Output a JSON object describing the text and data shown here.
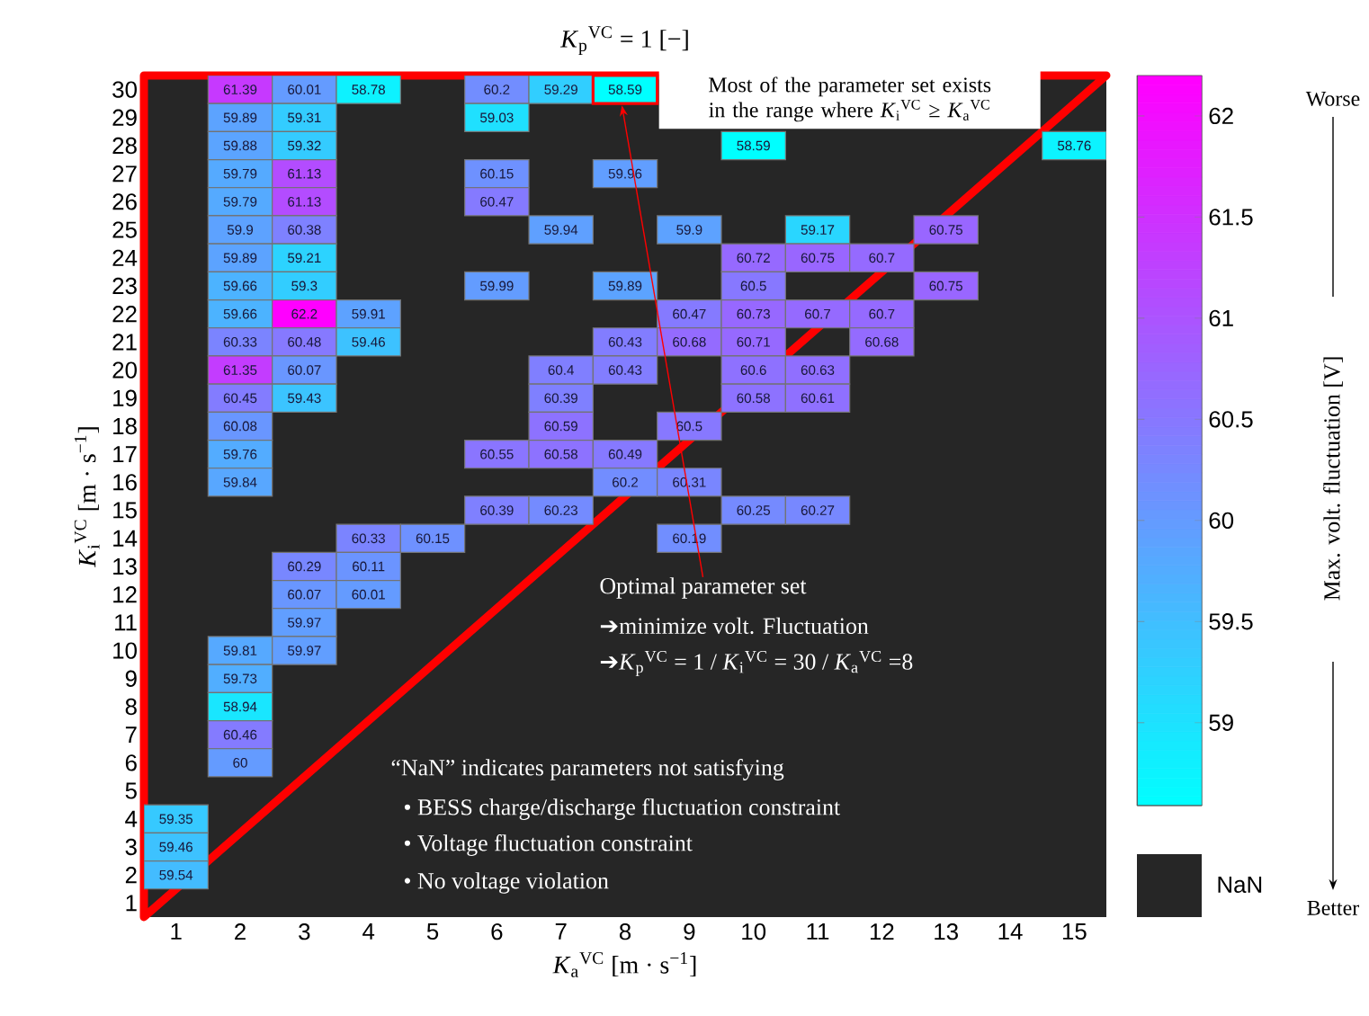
{
  "chart_data": {
    "type": "heatmap",
    "title": "*K*$_{p}$$^{VC}$ = 1 [−]",
    "xlabel": "*K*$_{a}$$^{VC}$ [m · s$^{−1}$]",
    "ylabel": "*K*$_{i}$$^{VC}$ [m · s$^{−1}$]",
    "clabel": "Max. volt. fluctuation [V]",
    "categories": [
      "1",
      "2",
      "3",
      "4",
      "5",
      "6",
      "7",
      "8",
      "9",
      "10",
      "11",
      "12",
      "13",
      "14",
      "15"
    ],
    "y_categories": [
      "30",
      "29",
      "28",
      "27",
      "26",
      "25",
      "24",
      "23",
      "22",
      "21",
      "20",
      "19",
      "18",
      "17",
      "16",
      "15",
      "14",
      "13",
      "12",
      "11",
      "10",
      "9",
      "8",
      "7",
      "6",
      "5",
      "4",
      "3",
      "2",
      "1"
    ],
    "cells": [
      [
        null,
        61.39,
        60.01,
        58.78,
        null,
        60.2,
        59.29,
        58.59,
        null,
        null,
        null,
        null,
        null,
        null,
        null
      ],
      [
        null,
        59.89,
        59.31,
        null,
        null,
        59.03,
        null,
        null,
        null,
        null,
        null,
        null,
        null,
        null,
        null
      ],
      [
        null,
        59.88,
        59.32,
        null,
        null,
        null,
        null,
        null,
        null,
        58.59,
        null,
        null,
        null,
        null,
        58.76
      ],
      [
        null,
        59.79,
        61.13,
        null,
        null,
        60.15,
        null,
        59.96,
        null,
        null,
        null,
        null,
        null,
        null,
        null
      ],
      [
        null,
        59.79,
        61.13,
        null,
        null,
        60.47,
        null,
        null,
        null,
        null,
        null,
        null,
        null,
        null,
        null
      ],
      [
        null,
        59.9,
        60.38,
        null,
        null,
        null,
        59.94,
        null,
        59.9,
        null,
        59.17,
        null,
        60.75,
        null,
        null
      ],
      [
        null,
        59.89,
        59.21,
        null,
        null,
        null,
        null,
        null,
        null,
        60.72,
        60.75,
        60.7,
        null,
        null,
        null
      ],
      [
        null,
        59.66,
        59.3,
        null,
        null,
        59.99,
        null,
        59.89,
        null,
        60.5,
        null,
        null,
        60.75,
        null,
        null
      ],
      [
        null,
        59.66,
        62.2,
        59.91,
        null,
        null,
        null,
        null,
        60.47,
        60.73,
        60.7,
        60.7,
        null,
        null,
        null
      ],
      [
        null,
        60.33,
        60.48,
        59.46,
        null,
        null,
        null,
        60.43,
        60.68,
        60.71,
        null,
        60.68,
        null,
        null,
        null
      ],
      [
        null,
        61.35,
        60.07,
        null,
        null,
        null,
        60.4,
        60.43,
        null,
        60.6,
        60.63,
        null,
        null,
        null,
        null
      ],
      [
        null,
        60.45,
        59.43,
        null,
        null,
        null,
        60.39,
        null,
        null,
        60.58,
        60.61,
        null,
        null,
        null,
        null
      ],
      [
        null,
        60.08,
        null,
        null,
        null,
        null,
        60.59,
        null,
        60.5,
        null,
        null,
        null,
        null,
        null,
        null
      ],
      [
        null,
        59.76,
        null,
        null,
        null,
        60.55,
        60.58,
        60.49,
        null,
        null,
        null,
        null,
        null,
        null,
        null
      ],
      [
        null,
        59.84,
        null,
        null,
        null,
        null,
        null,
        60.2,
        60.31,
        null,
        null,
        null,
        null,
        null,
        null
      ],
      [
        null,
        null,
        null,
        null,
        null,
        60.39,
        60.23,
        null,
        null,
        60.25,
        60.27,
        null,
        null,
        null,
        null
      ],
      [
        null,
        null,
        null,
        60.33,
        60.15,
        null,
        null,
        null,
        60.19,
        null,
        null,
        null,
        null,
        null,
        null
      ],
      [
        null,
        null,
        60.29,
        60.11,
        null,
        null,
        null,
        null,
        null,
        null,
        null,
        null,
        null,
        null,
        null
      ],
      [
        null,
        null,
        60.07,
        60.01,
        null,
        null,
        null,
        null,
        null,
        null,
        null,
        null,
        null,
        null,
        null
      ],
      [
        null,
        null,
        59.97,
        null,
        null,
        null,
        null,
        null,
        null,
        null,
        null,
        null,
        null,
        null,
        null
      ],
      [
        null,
        59.81,
        59.97,
        null,
        null,
        null,
        null,
        null,
        null,
        null,
        null,
        null,
        null,
        null,
        null
      ],
      [
        null,
        59.73,
        null,
        null,
        null,
        null,
        null,
        null,
        null,
        null,
        null,
        null,
        null,
        null,
        null
      ],
      [
        null,
        58.94,
        null,
        null,
        null,
        null,
        null,
        null,
        null,
        null,
        null,
        null,
        null,
        null,
        null
      ],
      [
        null,
        60.46,
        null,
        null,
        null,
        null,
        null,
        null,
        null,
        null,
        null,
        null,
        null,
        null,
        null
      ],
      [
        null,
        60,
        null,
        null,
        null,
        null,
        null,
        null,
        null,
        null,
        null,
        null,
        null,
        null,
        null
      ],
      [
        null,
        null,
        null,
        null,
        null,
        null,
        null,
        null,
        null,
        null,
        null,
        null,
        null,
        null,
        null
      ],
      [
        59.35,
        null,
        null,
        null,
        null,
        null,
        null,
        null,
        null,
        null,
        null,
        null,
        null,
        null,
        null
      ],
      [
        59.46,
        null,
        null,
        null,
        null,
        null,
        null,
        null,
        null,
        null,
        null,
        null,
        null,
        null,
        null
      ],
      [
        59.54,
        null,
        null,
        null,
        null,
        null,
        null,
        null,
        null,
        null,
        null,
        null,
        null,
        null,
        null
      ],
      [
        null,
        null,
        null,
        null,
        null,
        null,
        null,
        null,
        null,
        null,
        null,
        null,
        null,
        null,
        null
      ]
    ],
    "data_labels": true,
    "clim": [
      58.59,
      62.2
    ],
    "cticks": [
      59,
      59.5,
      60,
      60.5,
      61,
      61.5,
      62
    ],
    "annotations": [
      "Most of the parameter set exists in the range where *K*$_{i}$$^{VC}$ ≥ *K*$_{a}$$^{VC}$",
      "Optimal parameter  set",
      "➔minimize volt. Fluctuation",
      "➔*K*$_{p}$$^{VC}$ = 1 / *K*$_{i}$$^{VC}$ = 30 / *K*$_{a}$$^{VC}$ =8",
      "“NaN” indicates parameters not satisfying",
      "• BESS charge/discharge fluctuation constraint",
      "• Voltage fluctuation constraint",
      "• No voltage violation",
      "Worse",
      "Better",
      "NaN"
    ]
  }
}
